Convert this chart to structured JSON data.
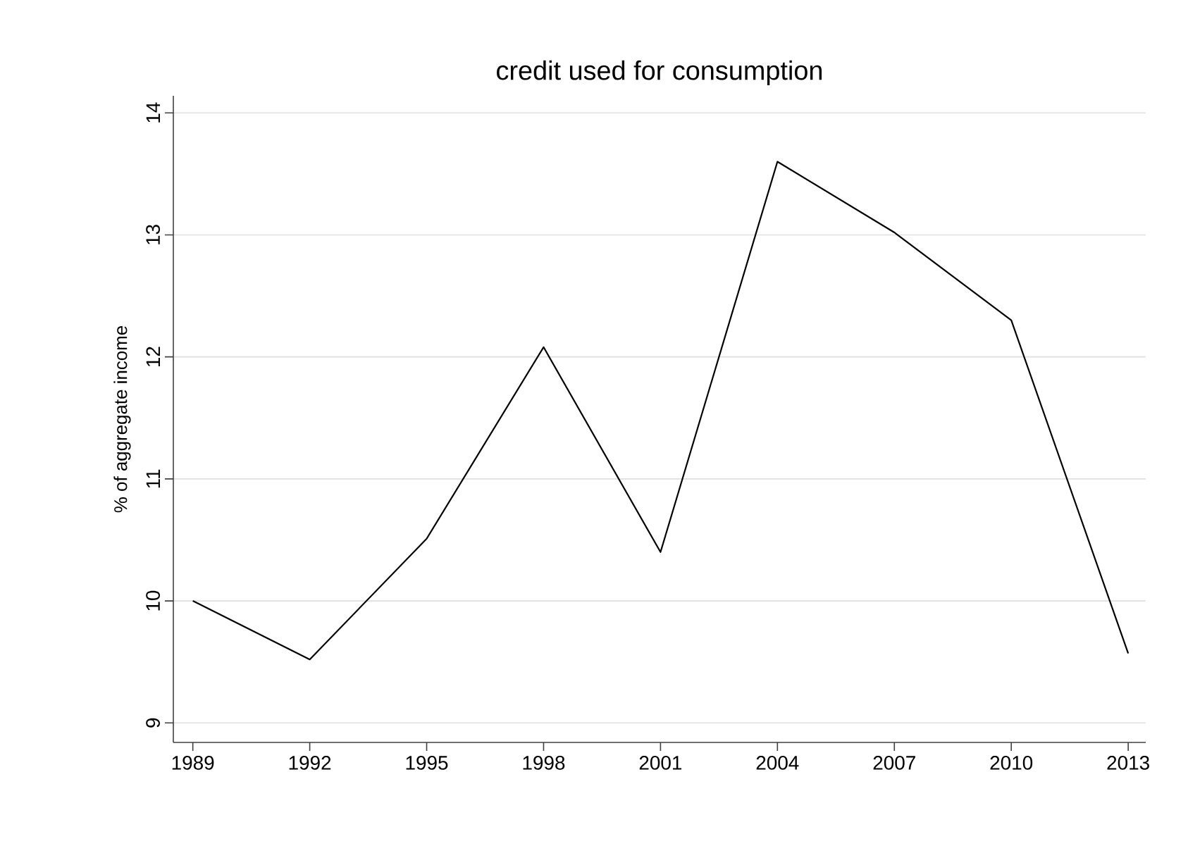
{
  "chart_data": {
    "type": "line",
    "title": "credit used for consumption",
    "ylabel": "% of aggregate income",
    "x": [
      1989,
      1992,
      1995,
      1998,
      2001,
      2004,
      2007,
      2010,
      2013
    ],
    "series": [
      {
        "color": "#000000",
        "values": [
          10.0,
          9.52,
          10.51,
          12.08,
          10.4,
          13.6,
          13.02,
          12.3,
          9.57
        ]
      }
    ],
    "xlim": [
      1988.5,
      2013.45
    ],
    "ylim": [
      8.84,
      14.14
    ],
    "xticks": [
      1989,
      1992,
      1995,
      1998,
      2001,
      2004,
      2007,
      2010,
      2013
    ],
    "yticks": [
      9,
      10,
      11,
      12,
      13,
      14
    ],
    "grid": "y",
    "marker": "none",
    "line_style": "solid"
  }
}
